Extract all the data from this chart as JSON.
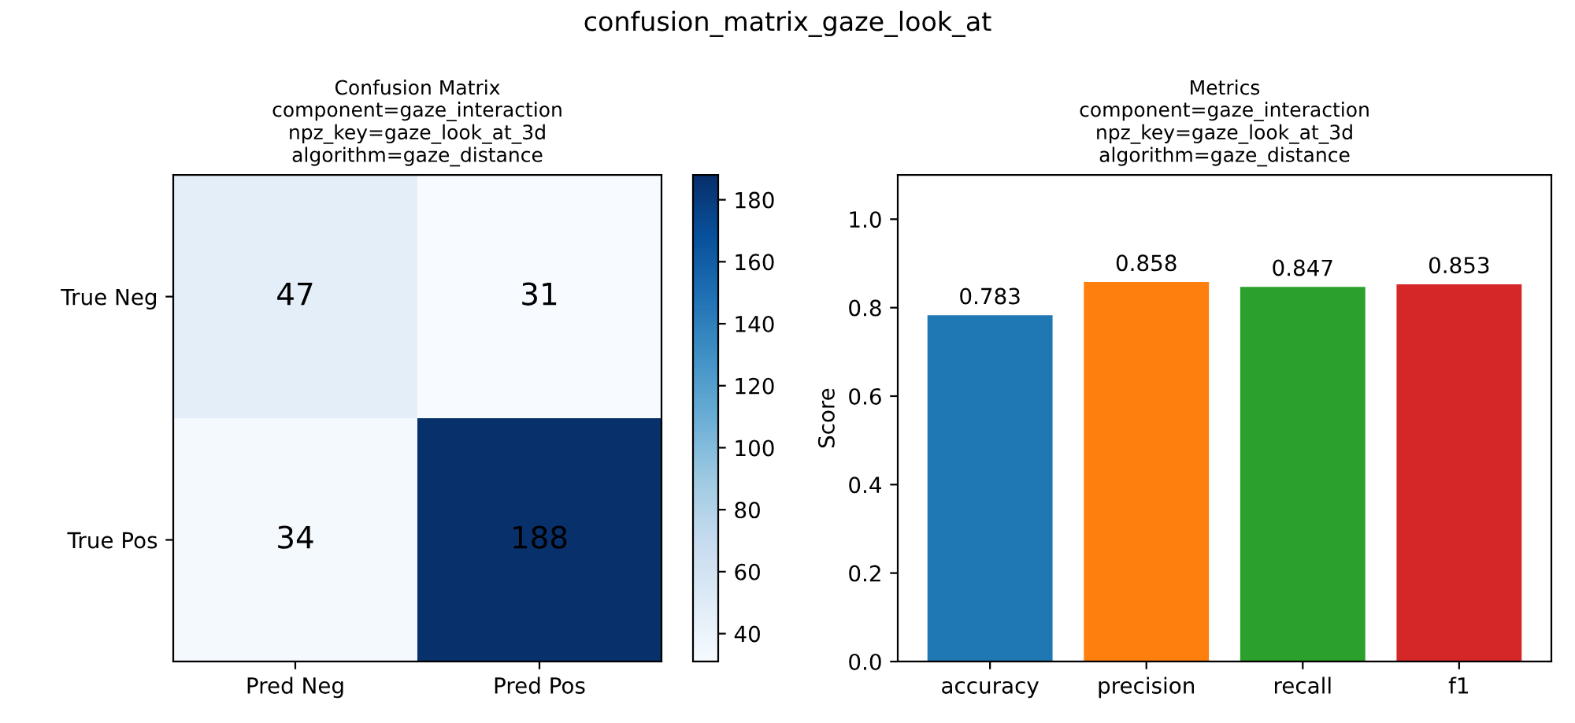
{
  "chart_data": [
    {
      "type": "heatmap",
      "title": "Confusion Matrix\ncomponent=gaze_interaction\nnpz_key=gaze_look_at_3d\nalgorithm=gaze_distance",
      "annotations": [
        "confusion_matrix_gaze_look_at"
      ],
      "categories": [
        "Pred Neg",
        "Pred Pos"
      ],
      "y_categories": [
        "True Neg",
        "True Pos"
      ],
      "cells": [
        [
          47,
          31
        ],
        [
          34,
          188
        ]
      ],
      "clim": [
        31,
        188
      ],
      "cticks": [
        40,
        60,
        80,
        100,
        120,
        140,
        160,
        180
      ],
      "data_labels": true
    },
    {
      "type": "bar",
      "title": "Metrics\ncomponent=gaze_interaction\nnpz_key=gaze_look_at_3d\nalgorithm=gaze_distance",
      "ylabel": "Score",
      "categories": [
        "accuracy",
        "precision",
        "recall",
        "f1"
      ],
      "values": [
        0.783,
        0.858,
        0.847,
        0.853
      ],
      "colors": [
        "#1f77b4",
        "#ff7f0e",
        "#2ca02c",
        "#d62728"
      ],
      "ylim": [
        0,
        1.1
      ],
      "yticks": [
        {
          "value": 0,
          "label": "0.0"
        },
        {
          "value": 0.2,
          "label": "0.2"
        },
        {
          "value": 0.4,
          "label": "0.4"
        },
        {
          "value": 0.6,
          "label": "0.6"
        },
        {
          "value": 0.8,
          "label": "0.8"
        },
        {
          "value": 1.0,
          "label": "1.0"
        }
      ],
      "data_labels": true,
      "grid": false
    }
  ]
}
